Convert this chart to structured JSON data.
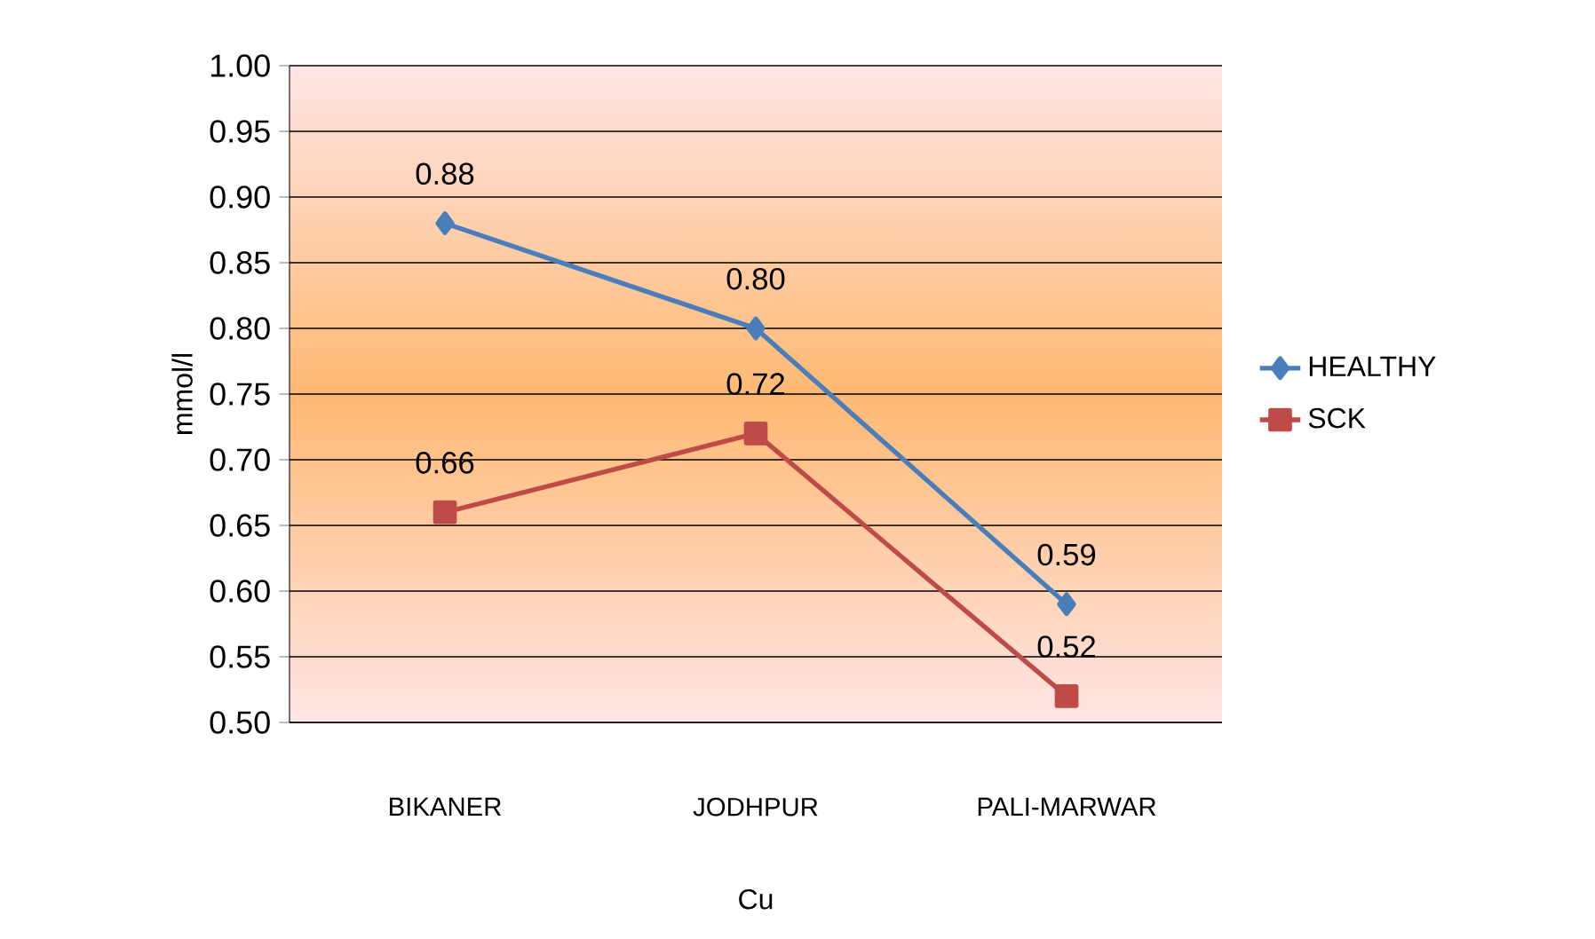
{
  "chart_data": {
    "type": "line",
    "xlabel": "Cu",
    "ylabel": "mmol/l",
    "categories": [
      "BIKANER",
      "JODHPUR",
      "PALI-MARWAR"
    ],
    "series": [
      {
        "name": "HEALTHY",
        "color": "#4a7ebb",
        "marker": "diamond",
        "values": [
          0.88,
          0.8,
          0.59
        ],
        "value_labels": [
          "0.88",
          "0.80",
          "0.59"
        ]
      },
      {
        "name": "SCK",
        "color": "#be4b48",
        "marker": "square",
        "values": [
          0.66,
          0.72,
          0.52
        ],
        "value_labels": [
          "0.66",
          "0.72",
          "0.52"
        ]
      }
    ],
    "ylim": [
      0.5,
      1.0
    ],
    "yticks": [
      {
        "value": 0.5,
        "label": "0.50"
      },
      0.55,
      {
        "value": 0.6,
        "label": "0.60"
      },
      0.65,
      {
        "value": 0.7,
        "label": "0.70"
      },
      0.75,
      {
        "value": 0.8,
        "label": "0.80"
      },
      0.85,
      {
        "value": 0.9,
        "label": "0.90"
      },
      0.95,
      {
        "value": 1.0,
        "label": "1.00"
      }
    ],
    "grid": "y",
    "legend": "right",
    "line_style": "solid"
  }
}
